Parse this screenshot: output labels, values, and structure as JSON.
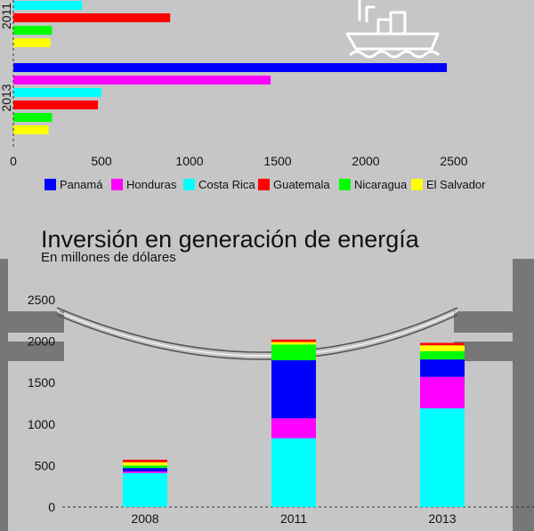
{
  "colors": {
    "background": "#c6c6c6",
    "pillar": "#777777",
    "Panamá": "#0000ff",
    "Honduras": "#ff00ff",
    "Costa Rica": "#00ffff",
    "Guatemala": "#ff0000",
    "Nicaragua": "#00ff00",
    "El Salvador": "#ffff00"
  },
  "icons": [
    "ship-icon",
    "bridge-illustration"
  ],
  "chart_data": [
    {
      "type": "bar",
      "orientation": "horizontal",
      "note_visible_portion": "chart is cut off at the top; only part of 2011 and 2013 groups visible",
      "group_labels": [
        "2011",
        "2013"
      ],
      "xlim": [
        0,
        2500
      ],
      "x_ticks": [
        "0",
        "500",
        "1000",
        "1500",
        "2000",
        "2500"
      ],
      "legend": [
        "Panamá",
        "Honduras",
        "Costa Rica",
        "Guatemala",
        "Nicaragua",
        "El Salvador"
      ],
      "legend_position": "bottom",
      "groups": [
        {
          "label": "2011",
          "bars": [
            {
              "series": "Costa Rica",
              "value": 390
            },
            {
              "series": "Guatemala",
              "value": 890
            },
            {
              "series": "Nicaragua",
              "value": 220
            },
            {
              "series": "El Salvador",
              "value": 210
            }
          ]
        },
        {
          "label": "2013",
          "bars": [
            {
              "series": "Panamá",
              "value": 2460
            },
            {
              "series": "Honduras",
              "value": 1460
            },
            {
              "series": "Costa Rica",
              "value": 500
            },
            {
              "series": "Guatemala",
              "value": 480
            },
            {
              "series": "Nicaragua",
              "value": 220
            },
            {
              "series": "El Salvador",
              "value": 200
            }
          ]
        }
      ]
    },
    {
      "type": "bar",
      "stacked": true,
      "title": "Inversión en generación de energía",
      "subtitle": "En millones de dólares",
      "categories": [
        "2008",
        "2011",
        "2013"
      ],
      "ylim": [
        0,
        2500
      ],
      "y_ticks": [
        "0",
        "500",
        "1000",
        "1500",
        "2000",
        "2500"
      ],
      "series": [
        {
          "name": "Costa Rica",
          "values": [
            410,
            830,
            1190
          ]
        },
        {
          "name": "Honduras",
          "values": [
            20,
            240,
            380
          ]
        },
        {
          "name": "Panamá",
          "values": [
            40,
            700,
            210
          ]
        },
        {
          "name": "Nicaragua",
          "values": [
            30,
            190,
            100
          ]
        },
        {
          "name": "El Salvador",
          "values": [
            40,
            30,
            70
          ]
        },
        {
          "name": "Guatemala",
          "values": [
            30,
            30,
            30
          ]
        }
      ]
    }
  ]
}
